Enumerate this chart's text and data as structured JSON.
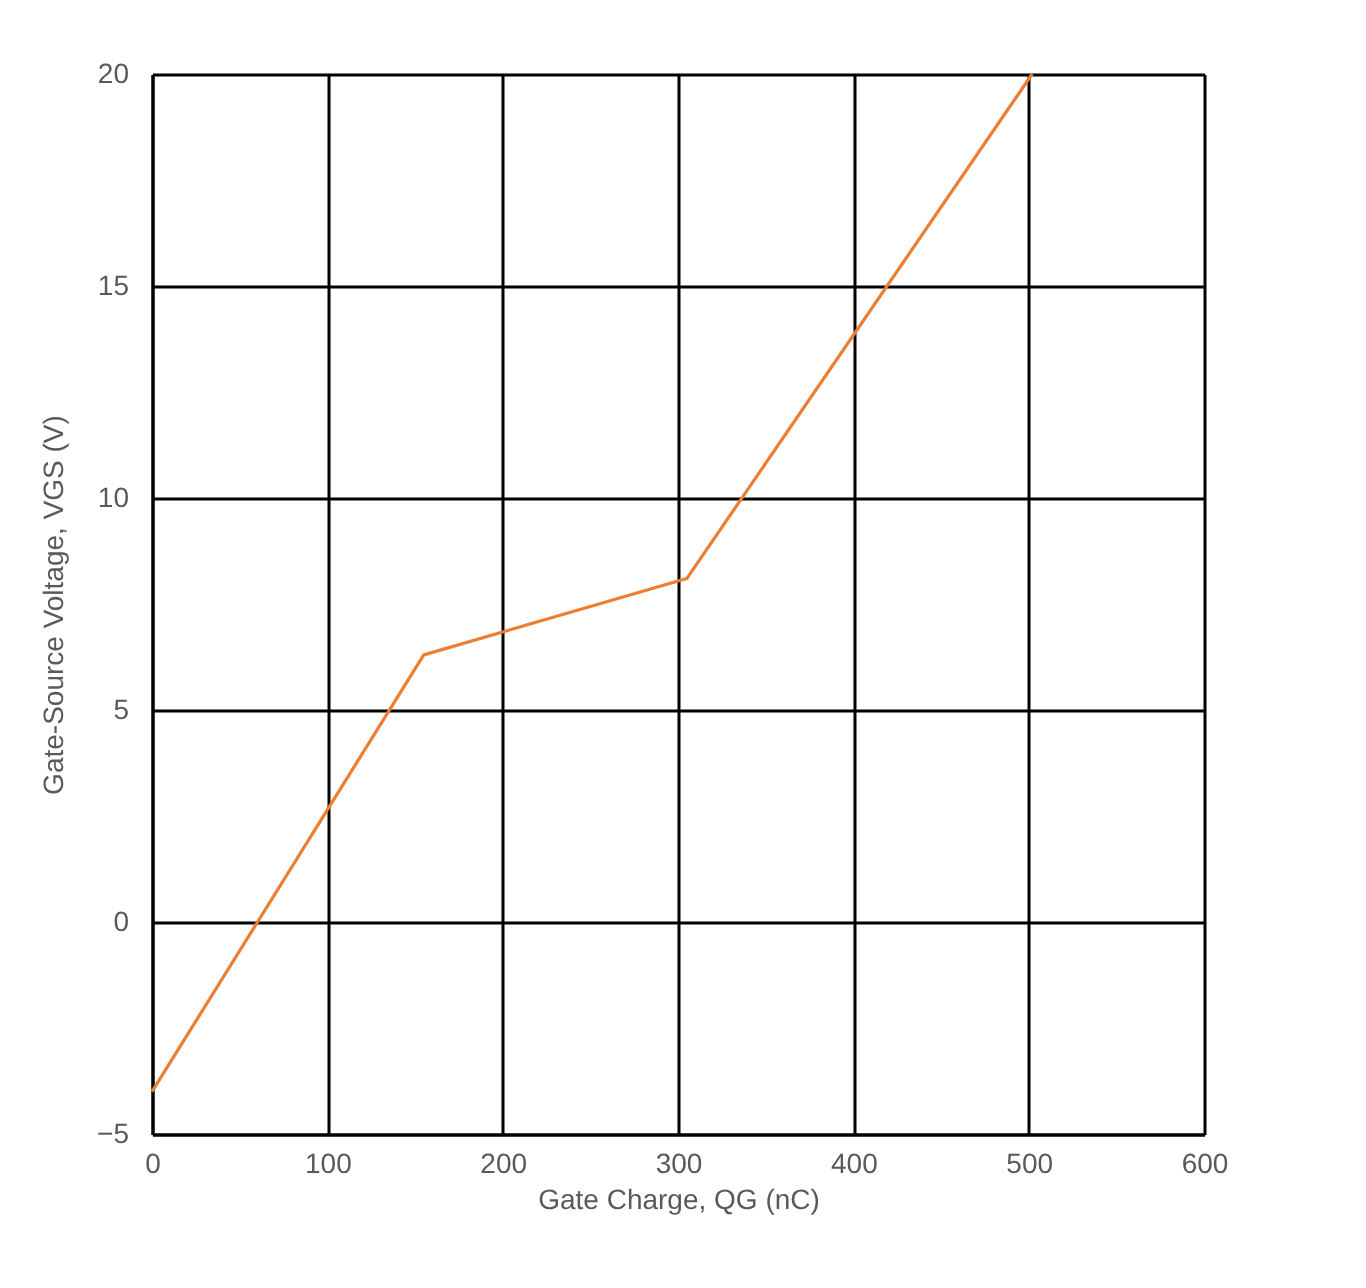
{
  "chart_data": {
    "type": "line",
    "xlabel": "Gate Charge, QG (nC)",
    "ylabel": "Gate-Source Voltage, VGS (V)",
    "x": [
      0,
      155,
      305,
      502
    ],
    "series": [
      {
        "color": "#ed7d31",
        "values": [
          -4,
          6.3,
          8.1,
          20
        ]
      }
    ],
    "xlim": [
      0,
      600
    ],
    "xticks": [
      0,
      100,
      200,
      300,
      400,
      500,
      600
    ],
    "ylim": [
      -5,
      20
    ],
    "yticks": [
      -5,
      0,
      5,
      10,
      15,
      20
    ],
    "grid": true,
    "marker": "none",
    "line_style": "solid"
  }
}
